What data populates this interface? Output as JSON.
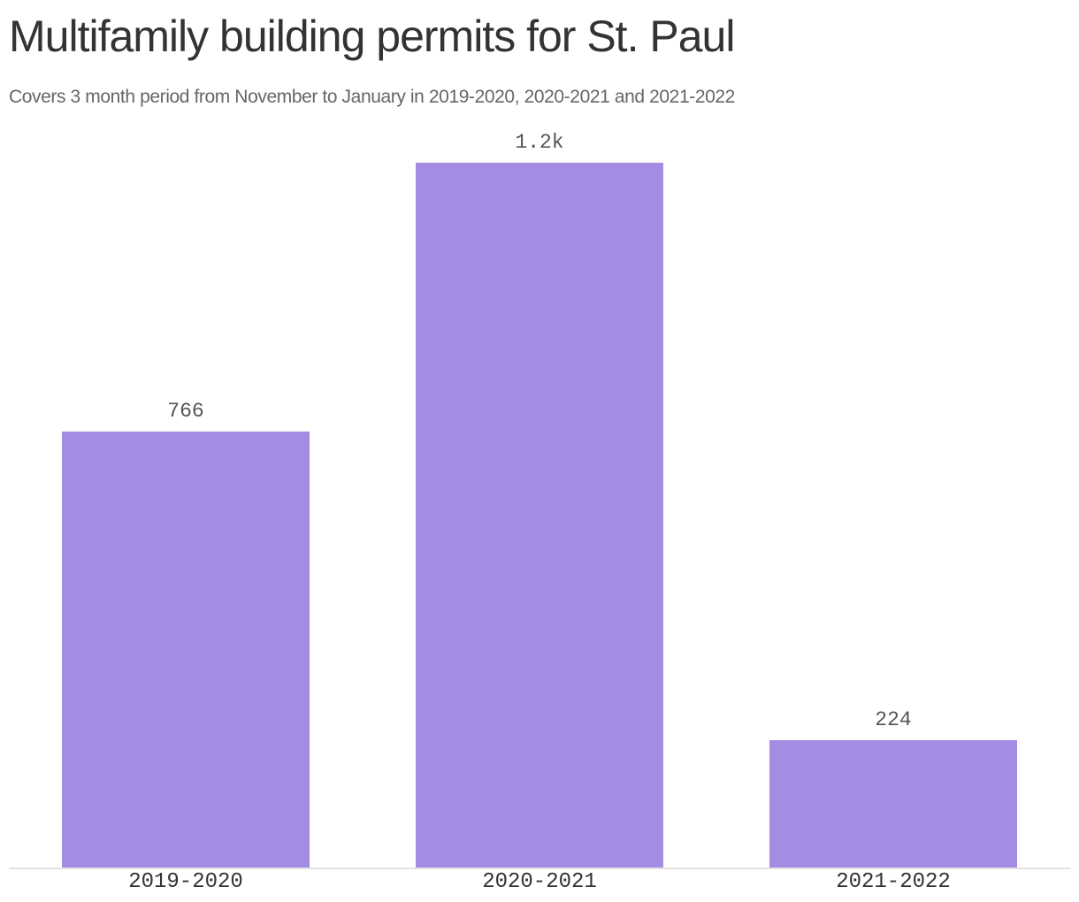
{
  "header": {
    "title": "Multifamily building permits for St. Paul",
    "subtitle": "Covers 3 month period from November to January in 2019-2020, 2020-2021 and 2021-2022"
  },
  "colors": {
    "bar": "#a48be3",
    "axis": "#e2e2e2",
    "title": "#333333",
    "subtitle": "#666666"
  },
  "chart_data": {
    "type": "bar",
    "title": "Multifamily building permits for St. Paul",
    "subtitle": "Covers 3 month period from November to January in 2019-2020, 2020-2021 and 2021-2022",
    "categories": [
      "2019-2020",
      "2020-2021",
      "2021-2022"
    ],
    "values": [
      766,
      1238,
      224
    ],
    "data_labels": [
      "766",
      "1.2k",
      "224"
    ],
    "xlabel": "",
    "ylabel": "",
    "ylim": [
      0,
      1238
    ],
    "grid": false,
    "legend": null
  }
}
